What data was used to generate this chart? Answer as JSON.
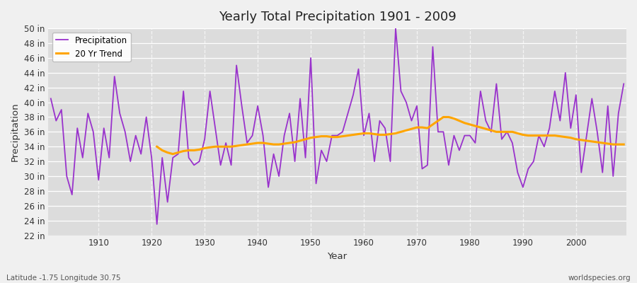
{
  "title": "Yearly Total Precipitation 1901 - 2009",
  "xlabel": "Year",
  "ylabel": "Precipitation",
  "bottom_left_label": "Latitude -1.75 Longitude 30.75",
  "bottom_right_label": "worldspecies.org",
  "legend_entries": [
    "Precipitation",
    "20 Yr Trend"
  ],
  "precip_color": "#9932CC",
  "trend_color": "#FFA500",
  "background_color": "#F0F0F0",
  "plot_bg_color": "#DCDCDC",
  "ylim": [
    22,
    50
  ],
  "ytick_step": 2,
  "years": [
    1901,
    1902,
    1903,
    1904,
    1905,
    1906,
    1907,
    1908,
    1909,
    1910,
    1911,
    1912,
    1913,
    1914,
    1915,
    1916,
    1917,
    1918,
    1919,
    1920,
    1921,
    1922,
    1923,
    1924,
    1925,
    1926,
    1927,
    1928,
    1929,
    1930,
    1931,
    1932,
    1933,
    1934,
    1935,
    1936,
    1937,
    1938,
    1939,
    1940,
    1941,
    1942,
    1943,
    1944,
    1945,
    1946,
    1947,
    1948,
    1949,
    1950,
    1951,
    1952,
    1953,
    1954,
    1955,
    1956,
    1957,
    1958,
    1959,
    1960,
    1961,
    1962,
    1963,
    1964,
    1965,
    1966,
    1967,
    1968,
    1969,
    1970,
    1971,
    1972,
    1973,
    1974,
    1975,
    1976,
    1977,
    1978,
    1979,
    1980,
    1981,
    1982,
    1983,
    1984,
    1985,
    1986,
    1987,
    1988,
    1989,
    1990,
    1991,
    1992,
    1993,
    1994,
    1995,
    1996,
    1997,
    1998,
    1999,
    2000,
    2001,
    2002,
    2003,
    2004,
    2005,
    2006,
    2007,
    2008,
    2009
  ],
  "precip": [
    40.5,
    37.5,
    39.0,
    30.0,
    27.5,
    36.5,
    32.5,
    38.5,
    36.0,
    29.5,
    36.5,
    32.5,
    43.5,
    38.5,
    36.0,
    32.0,
    35.5,
    33.0,
    38.0,
    32.5,
    23.5,
    32.5,
    26.5,
    32.5,
    33.0,
    41.5,
    32.5,
    31.5,
    32.0,
    35.0,
    41.5,
    36.5,
    31.5,
    34.5,
    31.5,
    45.0,
    39.5,
    34.5,
    35.5,
    39.5,
    35.5,
    28.5,
    33.0,
    30.0,
    35.5,
    38.5,
    32.0,
    40.5,
    32.5,
    46.0,
    29.0,
    33.5,
    32.0,
    35.5,
    35.5,
    36.0,
    38.5,
    41.0,
    44.5,
    35.5,
    38.5,
    32.0,
    37.5,
    36.5,
    32.0,
    50.0,
    41.5,
    40.0,
    37.5,
    39.5,
    31.0,
    31.5,
    47.5,
    36.0,
    36.0,
    31.5,
    35.5,
    33.5,
    35.5,
    35.5,
    34.5,
    41.5,
    37.5,
    36.0,
    42.5,
    35.0,
    36.0,
    34.5,
    30.5,
    28.5,
    31.0,
    32.0,
    35.5,
    34.0,
    36.5,
    41.5,
    37.5,
    44.0,
    36.5,
    41.0,
    30.5,
    35.5,
    40.5,
    36.0,
    30.5,
    39.5,
    30.0,
    38.5,
    42.5
  ],
  "trend_years": [
    1921,
    1922,
    1923,
    1924,
    1925,
    1926,
    1927,
    1928,
    1929,
    1930,
    1931,
    1932,
    1933,
    1934,
    1935,
    1936,
    1937,
    1938,
    1939,
    1940,
    1941,
    1942,
    1943,
    1944,
    1945,
    1946,
    1947,
    1948,
    1949,
    1950,
    1951,
    1952,
    1953,
    1954,
    1955,
    1956,
    1957,
    1958,
    1959,
    1960,
    1961,
    1962,
    1963,
    1964,
    1965,
    1966,
    1967,
    1968,
    1969,
    1970,
    1971,
    1972,
    1973,
    1974,
    1975,
    1976,
    1977,
    1978,
    1979,
    1980,
    1981,
    1982,
    1983,
    1984,
    1985,
    1986,
    1987,
    1988,
    1989,
    1990,
    1991,
    1992,
    1993,
    1994,
    1995,
    1996,
    1997,
    1998,
    1999,
    2000,
    2001,
    2002,
    2003,
    2004,
    2005,
    2006,
    2007,
    2008,
    2009
  ],
  "trend_vals": [
    34.0,
    33.5,
    33.2,
    33.0,
    33.2,
    33.4,
    33.5,
    33.5,
    33.6,
    33.8,
    33.9,
    34.0,
    34.0,
    34.0,
    34.0,
    34.1,
    34.2,
    34.3,
    34.4,
    34.5,
    34.5,
    34.4,
    34.3,
    34.3,
    34.4,
    34.5,
    34.6,
    34.8,
    35.0,
    35.2,
    35.3,
    35.4,
    35.4,
    35.3,
    35.3,
    35.4,
    35.5,
    35.6,
    35.7,
    35.8,
    35.8,
    35.7,
    35.6,
    35.6,
    35.7,
    35.8,
    36.0,
    36.2,
    36.4,
    36.6,
    36.6,
    36.5,
    37.0,
    37.5,
    38.0,
    38.0,
    37.8,
    37.5,
    37.2,
    37.0,
    36.8,
    36.6,
    36.4,
    36.2,
    36.0,
    36.0,
    36.0,
    36.0,
    35.8,
    35.6,
    35.5,
    35.5,
    35.5,
    35.5,
    35.5,
    35.5,
    35.4,
    35.3,
    35.2,
    35.0,
    34.9,
    34.8,
    34.7,
    34.6,
    34.5,
    34.4,
    34.3,
    34.3,
    34.3
  ]
}
